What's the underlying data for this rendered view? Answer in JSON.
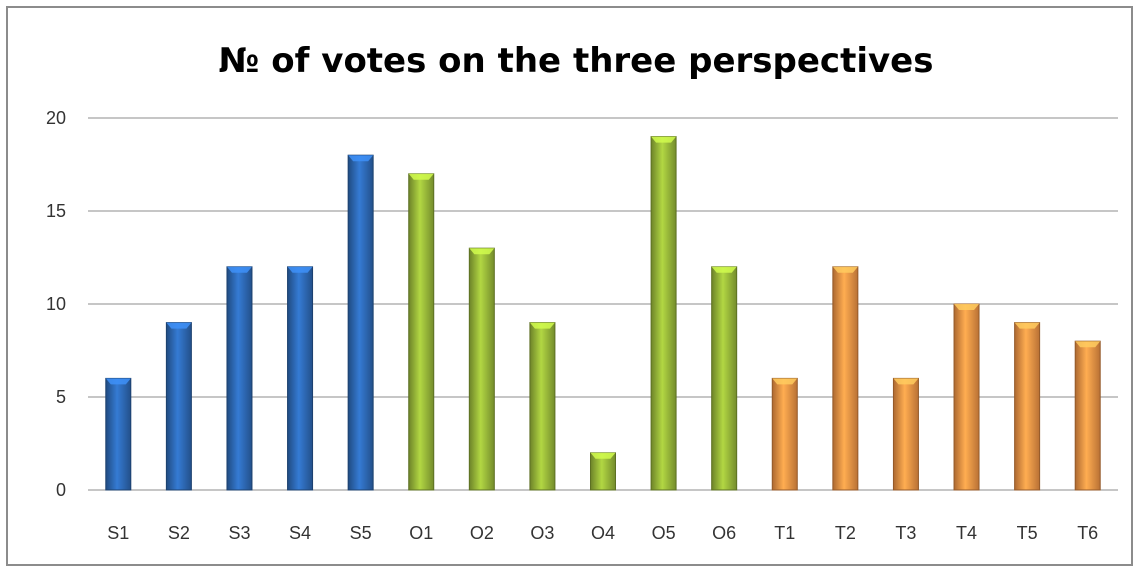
{
  "chart_data": {
    "type": "bar",
    "title": "№ of votes on the three perspectives",
    "xlabel": "",
    "ylabel": "",
    "ylim": [
      0,
      20
    ],
    "yticks": [
      0,
      5,
      10,
      15,
      20
    ],
    "grid": true,
    "legend": "none",
    "categories": [
      "S1",
      "S2",
      "S3",
      "S4",
      "S5",
      "O1",
      "O2",
      "O3",
      "O4",
      "O5",
      "O6",
      "T1",
      "T2",
      "T3",
      "T4",
      "T5",
      "T6"
    ],
    "values": [
      6,
      9,
      12,
      12,
      18,
      17,
      13,
      9,
      2,
      19,
      12,
      6,
      12,
      6,
      10,
      9,
      8
    ],
    "groups": [
      {
        "prefix": "S",
        "color": "#2e6bb8"
      },
      {
        "prefix": "O",
        "color": "#9bbb3a"
      },
      {
        "prefix": "T",
        "color": "#f79646"
      }
    ]
  }
}
